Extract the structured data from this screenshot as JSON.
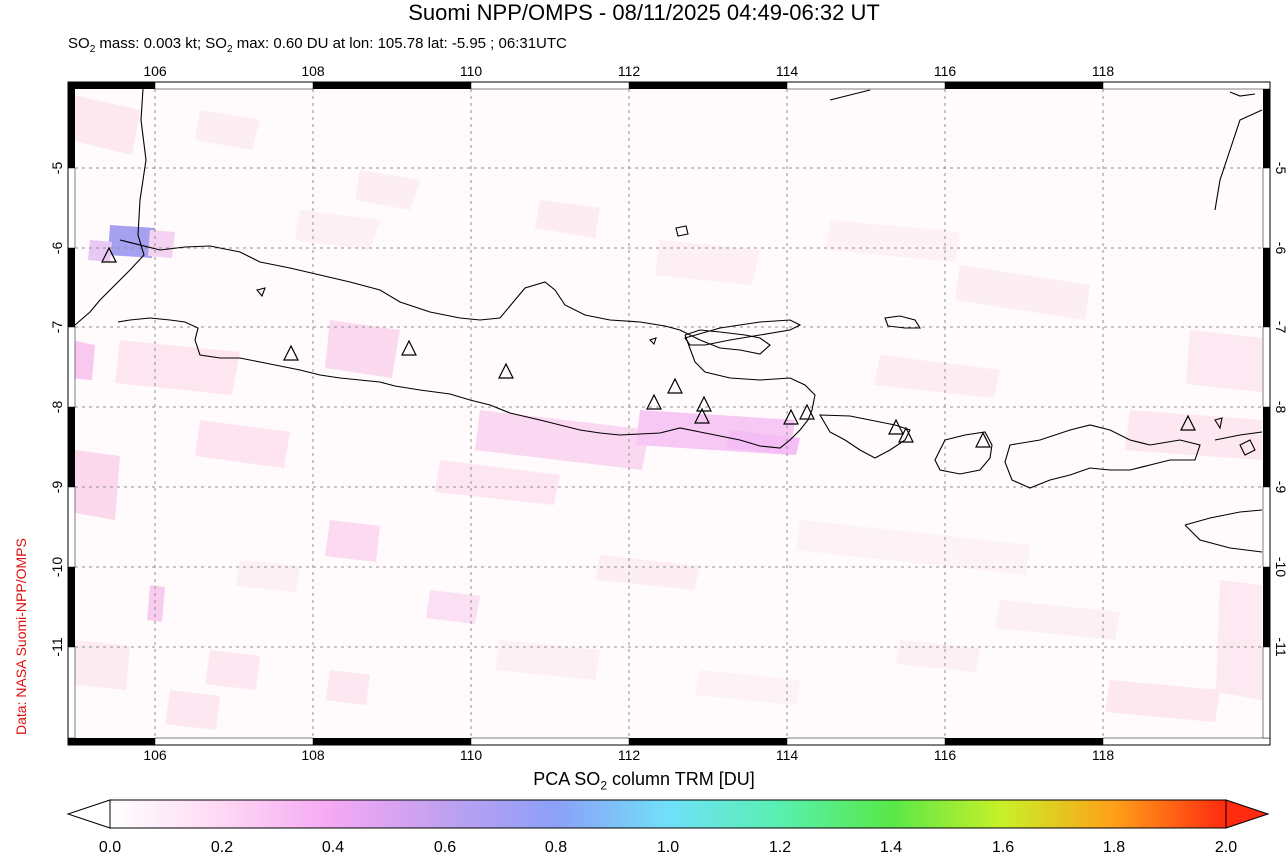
{
  "title": "Suomi NPP/OMPS - 08/11/2025 04:49-06:32 UT",
  "subtitle": {
    "pre": "SO",
    "sub1": "2",
    "mid": " mass: 0.003 kt; SO",
    "sub2": "2",
    "post": " max: 0.60 DU at lon: 105.78 lat: -5.95 ; 06:31UTC"
  },
  "credit": "Data: NASA Suomi-NPP/OMPS",
  "map": {
    "lon_range": [
      105,
      120
    ],
    "lat_range": [
      -12.1,
      -3.9
    ],
    "lon_ticks": [
      "106",
      "108",
      "110",
      "112",
      "114",
      "116",
      "118"
    ],
    "lat_ticks": [
      "-5",
      "-6",
      "-7",
      "-8",
      "-9",
      "-10",
      "-11"
    ],
    "grid": true,
    "volcano_icon": "triangle-icon"
  },
  "colorbar": {
    "title_pre": "PCA SO",
    "title_sub": "2",
    "title_post": " column TRM [DU]",
    "ticks": [
      "0.0",
      "0.2",
      "0.4",
      "0.6",
      "0.8",
      "1.0",
      "1.2",
      "1.4",
      "1.6",
      "1.8",
      "2.0"
    ],
    "colors": [
      "#ffffff",
      "#ffd8f4",
      "#f4a8f4",
      "#a4a0f0",
      "#80a8ff",
      "#60f0f0",
      "#58f0a0",
      "#60e840",
      "#d8f020",
      "#ff9010",
      "#ff2010"
    ]
  }
}
